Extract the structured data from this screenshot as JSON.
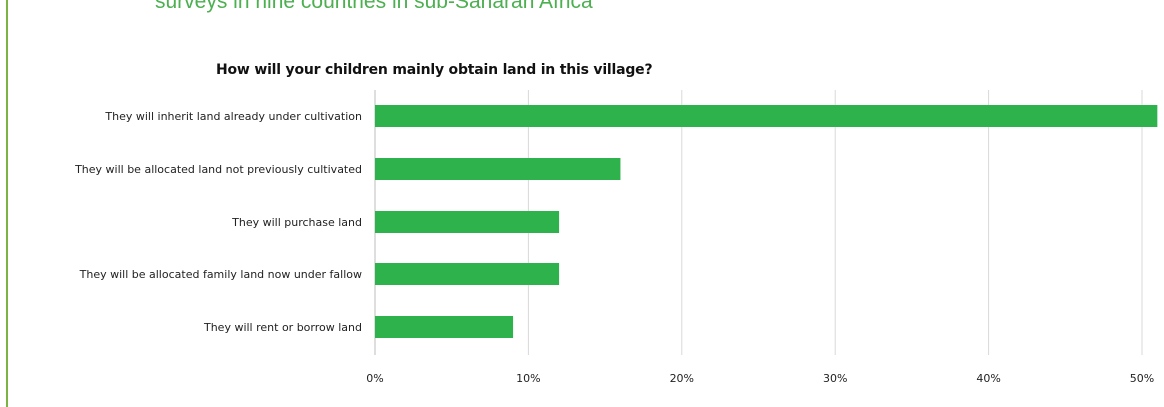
{
  "header": {
    "subtitle": "surveys in nine countries in sub-Saharan Africa"
  },
  "colors": {
    "bar": "#2db24c",
    "accent_rule": "#7cb342",
    "subtitle": "#4caf50",
    "grid": "#d9d9d9"
  },
  "chart_data": {
    "type": "bar",
    "orientation": "horizontal",
    "title": "How will your children mainly obtain land in this village?",
    "categories": [
      "They will inherit land already under cultivation",
      "They will be allocated land not previously cultivated",
      "They will purchase land",
      "They will be allocated family land now under fallow",
      "They will rent or borrow land"
    ],
    "values": [
      51,
      16,
      12,
      12,
      9
    ],
    "xlim": [
      0,
      50
    ],
    "xticks": [
      0,
      10,
      20,
      30,
      40,
      50
    ],
    "xtick_labels": [
      "0%",
      "10%",
      "20%",
      "30%",
      "40%",
      "50%"
    ],
    "xlabel": "",
    "ylabel": "",
    "grid": true,
    "legend": "none"
  }
}
